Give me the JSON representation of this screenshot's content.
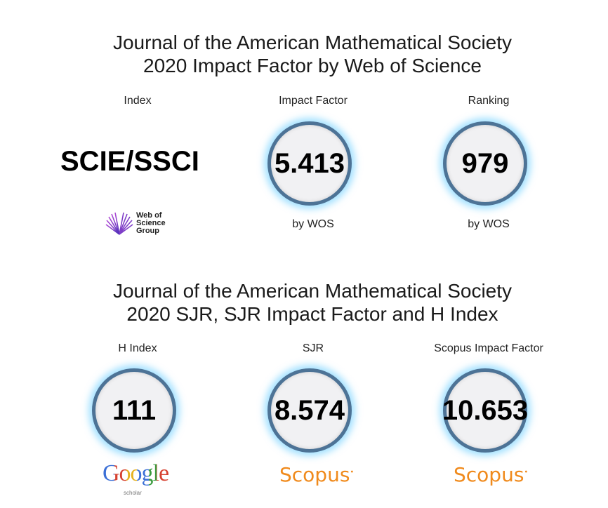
{
  "wos_section": {
    "title_line1": "Journal of the American Mathematical Society",
    "title_line2": "2020 Impact Factor by Web of Science",
    "index_label": "Index",
    "index_value": "SCIE/SSCI",
    "impact_label": "Impact Factor",
    "impact_value": "5.413",
    "impact_source": "by WOS",
    "ranking_label": "Ranking",
    "ranking_value": "979",
    "ranking_source": "by WOS",
    "logo_line1": "Web of",
    "logo_line2": "Science",
    "logo_line3": "Group"
  },
  "sjr_section": {
    "title_line1": "Journal of the American Mathematical Society",
    "title_line2": "2020 SJR, SJR Impact Factor and H Index",
    "hindex_label": "H Index",
    "hindex_value": "111",
    "sjr_label": "SJR",
    "sjr_value": "8.574",
    "scopus_if_label": "Scopus Impact Factor",
    "scopus_if_value": "10.653",
    "google_logo": "Google",
    "google_sub": "scholar",
    "scopus_logo": "Scopus",
    "scopus_logo_2": "Scopus"
  },
  "colors": {
    "ring": "#4d7396",
    "glow": "#5ac8ff",
    "scopus_orange": "#f08a1c"
  }
}
